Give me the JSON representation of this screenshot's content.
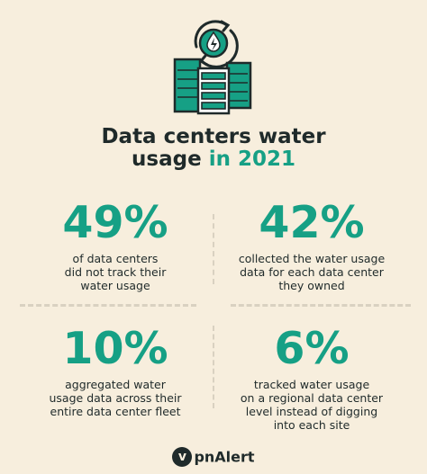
{
  "header": {
    "title_line1": "Data centers water",
    "title_line2_main": "usage",
    "title_line2_accent": "in 2021"
  },
  "stats": [
    {
      "value": "49%",
      "lines": [
        "of data centers",
        "did not track their",
        "water usage"
      ]
    },
    {
      "value": "42%",
      "lines": [
        "collected the water usage",
        "data for each data center",
        "they owned"
      ]
    },
    {
      "value": "10%",
      "lines": [
        "aggregated water",
        "usage data across their",
        "entire data center fleet"
      ]
    },
    {
      "value": "6%",
      "lines": [
        "tracked water usage",
        "on a regional data center",
        "level instead of digging",
        "into each site"
      ]
    }
  ],
  "footer": {
    "brand_mark": "v",
    "brand_name": "pnAlert"
  },
  "colors": {
    "background": "#f7eedd",
    "accent": "#16a085",
    "text": "#1f2a2a"
  },
  "icons": [
    "server-rack-icon",
    "water-drop-bolt-icon",
    "recycle-arrows-icon"
  ]
}
